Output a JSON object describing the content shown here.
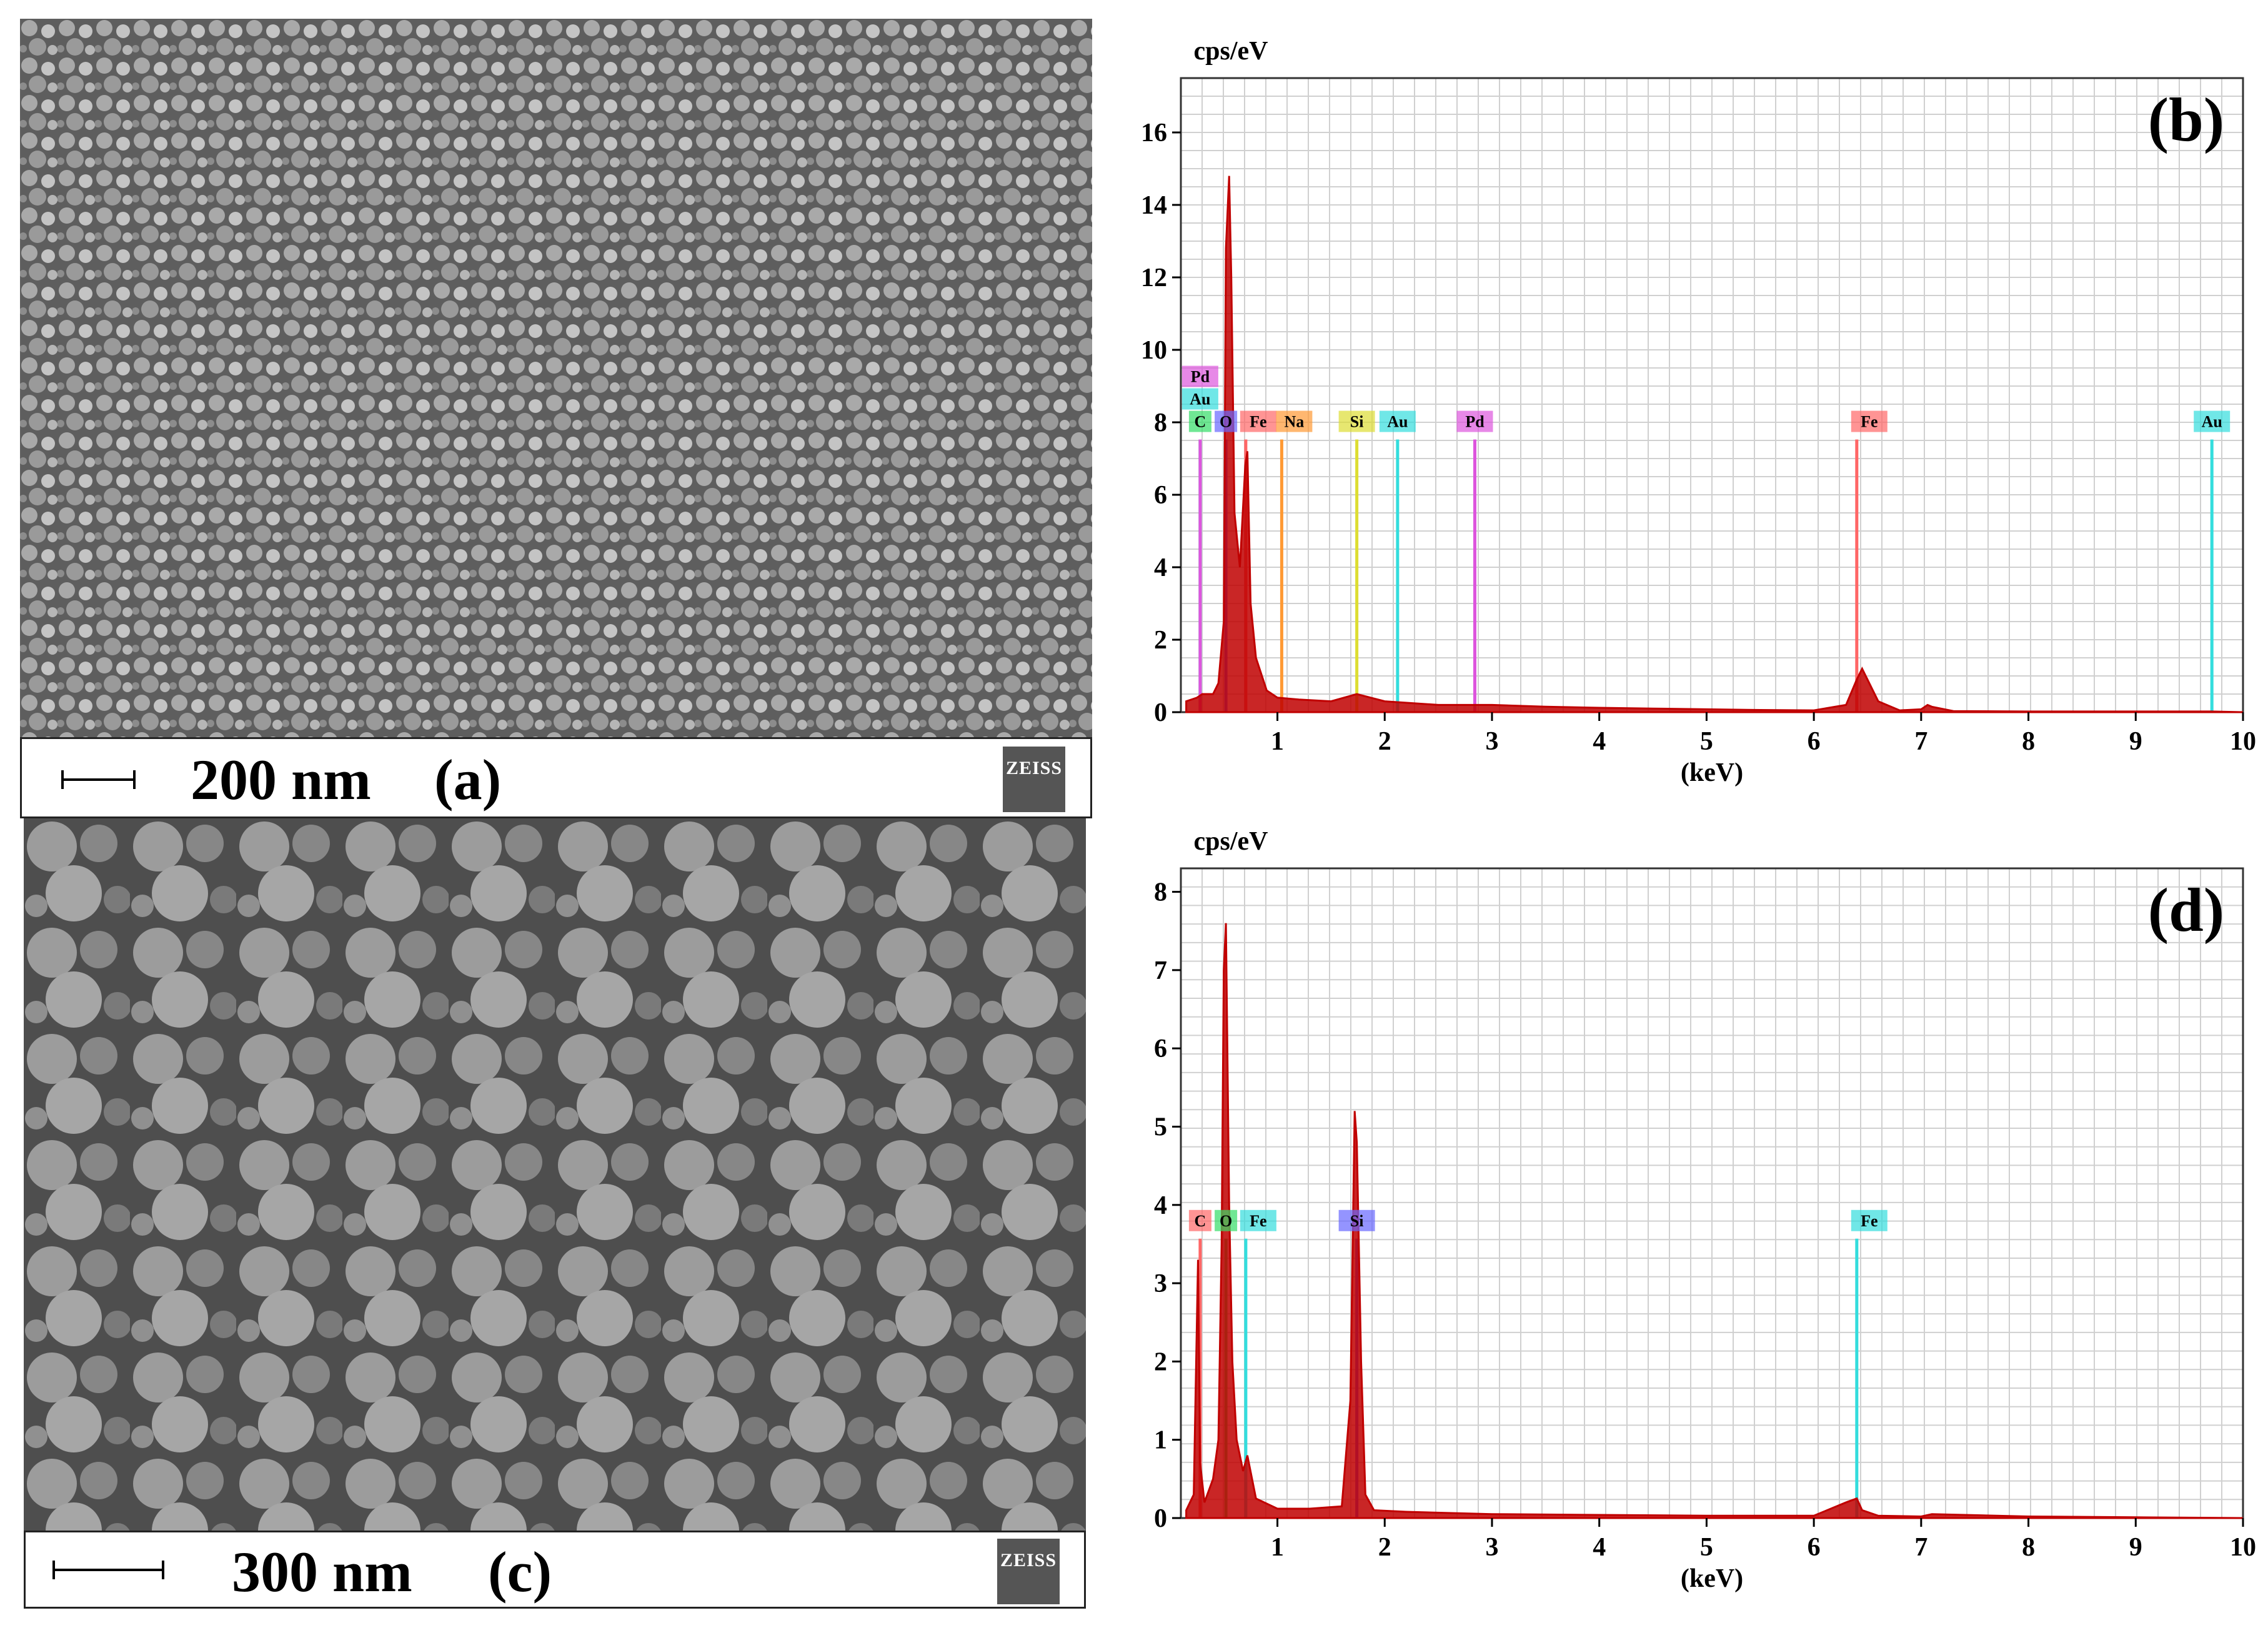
{
  "panels": {
    "a": {
      "scale_label": "200 nm",
      "panel_label": "(a)",
      "logo_text": "ZEISS"
    },
    "c": {
      "scale_label": "300 nm",
      "panel_label": "(c)",
      "logo_text": "ZEISS"
    }
  },
  "chart_data": [
    {
      "type": "line",
      "panel_label": "(b)",
      "ylabel": "cps/eV",
      "xlabel": "(keV)",
      "xlim": [
        0.1,
        10
      ],
      "ylim": [
        0,
        17.5
      ],
      "x_ticks": [
        1,
        2,
        3,
        4,
        5,
        6,
        7,
        8,
        9,
        10
      ],
      "y_ticks": [
        0,
        2,
        4,
        6,
        8,
        10,
        12,
        14,
        16
      ],
      "grid": true,
      "series": [
        {
          "color": "#c00000",
          "x": [
            0.15,
            0.25,
            0.3,
            0.4,
            0.45,
            0.5,
            0.52,
            0.55,
            0.57,
            0.6,
            0.65,
            0.7,
            0.72,
            0.75,
            0.8,
            0.9,
            1.0,
            1.2,
            1.5,
            1.74,
            2.0,
            2.5,
            3.0,
            3.5,
            4.0,
            4.5,
            5.0,
            5.5,
            6.0,
            6.3,
            6.4,
            6.45,
            6.5,
            6.6,
            6.8,
            7.0,
            7.06,
            7.1,
            7.3,
            8.0,
            9.0,
            9.7,
            10.0
          ],
          "y": [
            0.3,
            0.4,
            0.5,
            0.5,
            0.8,
            2.5,
            12.8,
            14.8,
            12.0,
            5.5,
            4.0,
            6.8,
            7.2,
            3.0,
            1.5,
            0.6,
            0.4,
            0.35,
            0.3,
            0.5,
            0.3,
            0.2,
            0.2,
            0.15,
            0.12,
            0.1,
            0.08,
            0.06,
            0.05,
            0.2,
            0.9,
            1.2,
            0.9,
            0.3,
            0.05,
            0.08,
            0.2,
            0.15,
            0.03,
            0.02,
            0.02,
            0.02,
            0.0
          ]
        }
      ],
      "element_lines": [
        {
          "label": "C",
          "x": 0.28,
          "color": "#33dd66"
        },
        {
          "label": "Au",
          "x": 0.28,
          "color": "#33dddd"
        },
        {
          "label": "Pd",
          "x": 0.28,
          "color": "#dd55dd"
        },
        {
          "label": "O",
          "x": 0.52,
          "color": "#6666ff"
        },
        {
          "label": "Fe",
          "x": 0.705,
          "color": "#ff6666"
        },
        {
          "label": "Na",
          "x": 1.04,
          "color": "#ff9933"
        },
        {
          "label": "Si",
          "x": 1.74,
          "color": "#dddd33"
        },
        {
          "label": "Au",
          "x": 2.12,
          "color": "#33dddd"
        },
        {
          "label": "Pd",
          "x": 2.84,
          "color": "#dd55dd"
        },
        {
          "label": "Fe",
          "x": 6.4,
          "color": "#ff6666"
        },
        {
          "label": "Au",
          "x": 9.71,
          "color": "#33dddd"
        }
      ]
    },
    {
      "type": "line",
      "panel_label": "(d)",
      "ylabel": "cps/eV",
      "xlabel": "(keV)",
      "xlim": [
        0.1,
        10
      ],
      "ylim": [
        0,
        8.3
      ],
      "x_ticks": [
        1,
        2,
        3,
        4,
        5,
        6,
        7,
        8,
        9,
        10
      ],
      "y_ticks": [
        0,
        1,
        2,
        3,
        4,
        5,
        6,
        7,
        8
      ],
      "grid": true,
      "series": [
        {
          "color": "#c00000",
          "x": [
            0.15,
            0.22,
            0.26,
            0.28,
            0.32,
            0.4,
            0.45,
            0.48,
            0.5,
            0.52,
            0.55,
            0.58,
            0.62,
            0.68,
            0.72,
            0.8,
            1.0,
            1.3,
            1.6,
            1.68,
            1.72,
            1.74,
            1.78,
            1.82,
            1.9,
            2.2,
            3.0,
            4.0,
            5.0,
            6.0,
            6.3,
            6.4,
            6.45,
            6.6,
            7.0,
            7.1,
            8.0,
            9.0,
            10.0
          ],
          "y": [
            0.1,
            0.3,
            3.3,
            0.7,
            0.2,
            0.5,
            1.0,
            3.5,
            7.0,
            7.6,
            4.0,
            2.0,
            1.0,
            0.6,
            0.8,
            0.25,
            0.12,
            0.12,
            0.15,
            1.5,
            5.2,
            4.8,
            2.0,
            0.3,
            0.1,
            0.08,
            0.05,
            0.04,
            0.03,
            0.03,
            0.2,
            0.25,
            0.1,
            0.03,
            0.02,
            0.05,
            0.02,
            0.01,
            0.0
          ]
        }
      ],
      "element_lines": [
        {
          "label": "C",
          "x": 0.28,
          "color": "#ff6666"
        },
        {
          "label": "O",
          "x": 0.52,
          "color": "#33dd66"
        },
        {
          "label": "Fe",
          "x": 0.705,
          "color": "#33dddd"
        },
        {
          "label": "Si",
          "x": 1.74,
          "color": "#6666ff"
        },
        {
          "label": "Fe",
          "x": 6.4,
          "color": "#33dddd"
        }
      ]
    }
  ]
}
